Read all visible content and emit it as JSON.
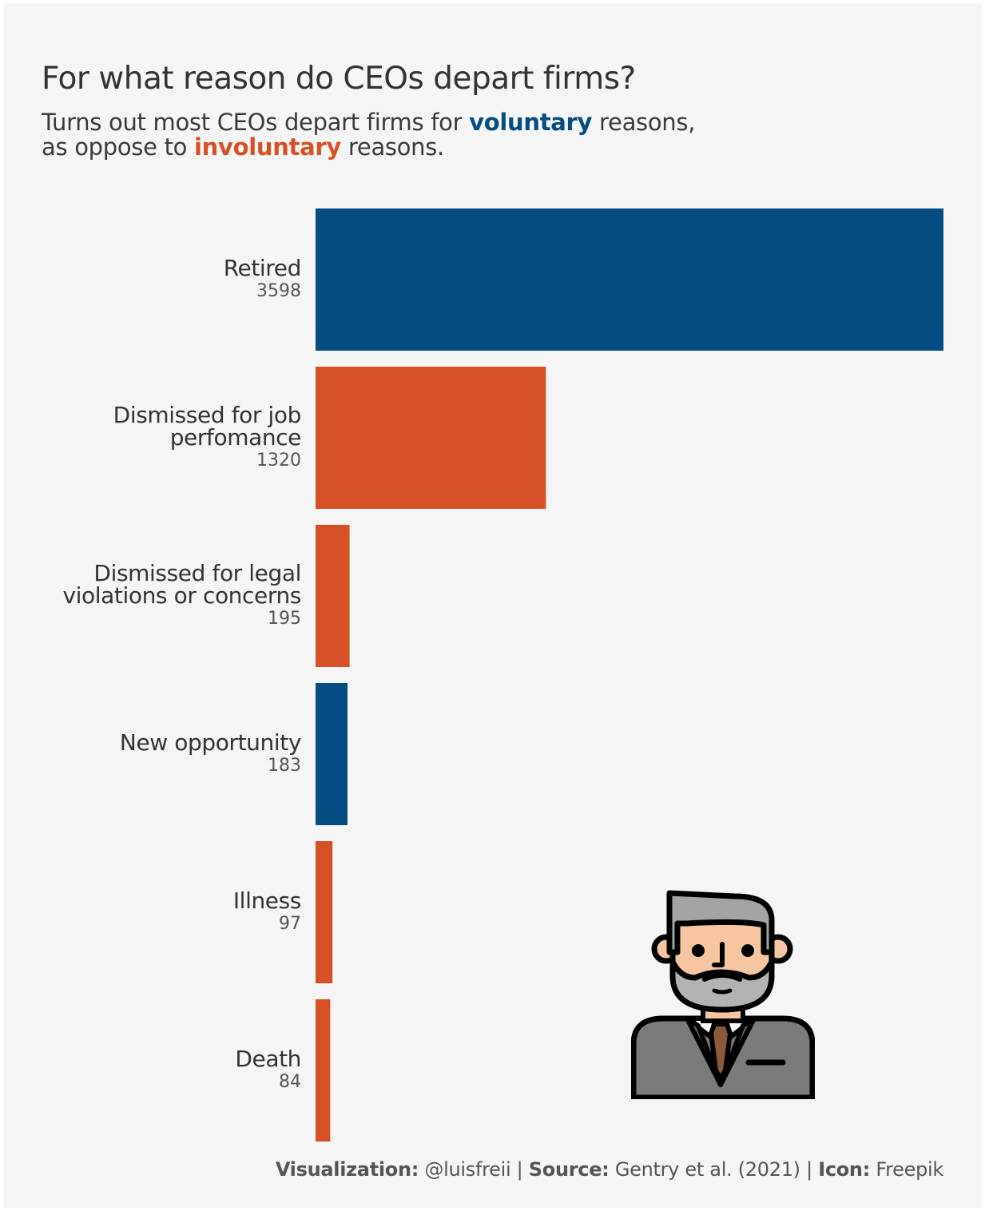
{
  "title": "For what reason do CEOs depart firms?",
  "subtitle": {
    "line1_pre": "Turns out most CEOs depart firms for ",
    "line1_key": "voluntary",
    "line1_post": " reasons,",
    "line2_pre": "as oppose to ",
    "line2_key": "involuntary",
    "line2_post": " reasons."
  },
  "colors": {
    "voluntary": "#054c80",
    "involuntary": "#d65027",
    "background": "#f5f5f5",
    "text": "#333333"
  },
  "caption": {
    "viz_label": "Visualization:",
    "viz_value": " @luisfreii | ",
    "source_label": "Source:",
    "source_value": " Gentry et al. (2021) | ",
    "icon_label": "Icon:",
    "icon_value": " Freepik"
  },
  "icon": "ceo-businessman-icon",
  "chart_data": {
    "type": "bar",
    "orientation": "horizontal",
    "categories": [
      [
        "Retired"
      ],
      [
        "Dismissed for job",
        "perfomance"
      ],
      [
        "Dismissed for legal",
        "violations or concerns"
      ],
      [
        "New opportunity"
      ],
      [
        "Illness"
      ],
      [
        "Death"
      ]
    ],
    "values": [
      3598,
      1320,
      195,
      183,
      97,
      84
    ],
    "value_labels": [
      "3598",
      "1320",
      "195",
      "183",
      "97",
      "84"
    ],
    "groups": [
      "voluntary",
      "involuntary",
      "involuntary",
      "voluntary",
      "involuntary",
      "involuntary"
    ],
    "xlim": [
      0,
      3598
    ],
    "grid": false
  }
}
